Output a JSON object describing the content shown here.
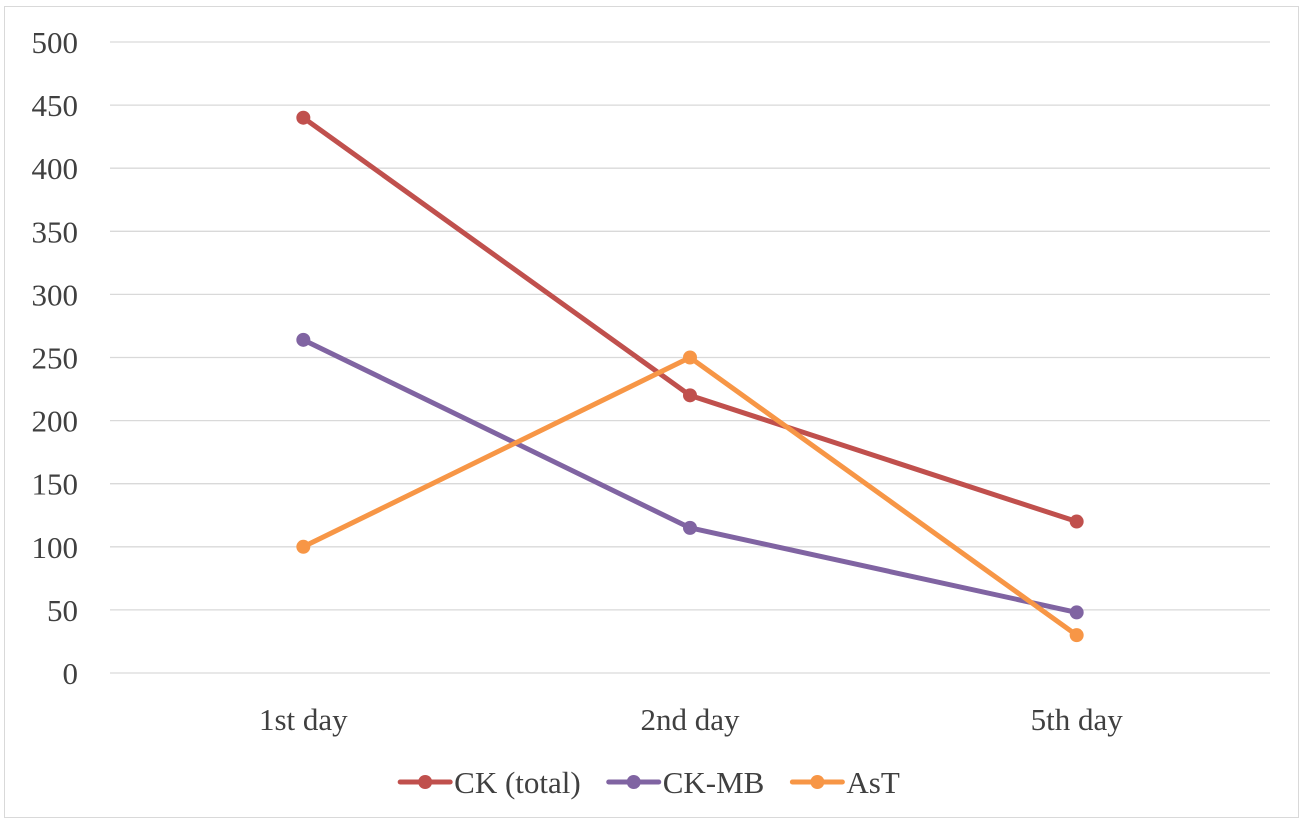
{
  "chart_data": {
    "type": "line",
    "title": "",
    "xlabel": "",
    "ylabel": "",
    "categories": [
      "1st day",
      "2nd day",
      "5th day"
    ],
    "ylim": [
      0,
      500
    ],
    "yticks": [
      0,
      50,
      100,
      150,
      200,
      250,
      300,
      350,
      400,
      450,
      500
    ],
    "grid": true,
    "legend_position": "bottom",
    "series": [
      {
        "name": "CK (total)",
        "color": "#c0504d",
        "values": [
          440,
          220,
          120
        ]
      },
      {
        "name": "CK-MB",
        "color": "#8064a2",
        "values": [
          264,
          115,
          48
        ]
      },
      {
        "name": "AsT",
        "color": "#f79646",
        "values": [
          100,
          250,
          30
        ]
      }
    ]
  }
}
